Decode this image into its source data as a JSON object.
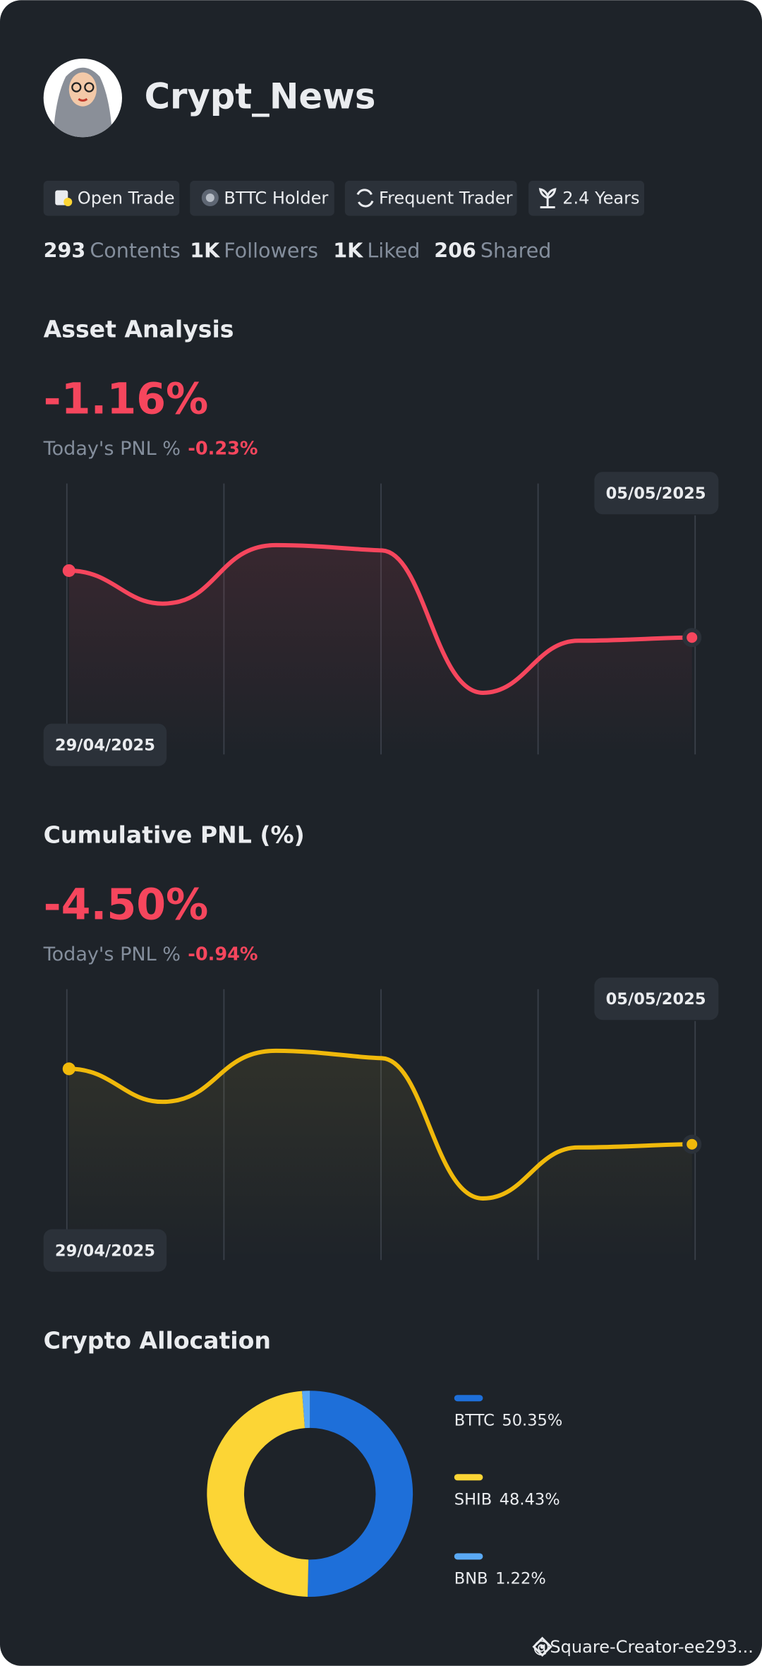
{
  "profile": {
    "name": "Crypt_News",
    "badges": [
      "Open Trade",
      "BTTC Holder",
      "Frequent Trader",
      "2.4 Years"
    ],
    "stats": [
      {
        "value": "293",
        "label": "Contents"
      },
      {
        "value": "1K",
        "label": "Followers"
      },
      {
        "value": "1K",
        "label": "Liked"
      },
      {
        "value": "206",
        "label": "Shared"
      }
    ]
  },
  "asset_analysis": {
    "title": "Asset Analysis",
    "value": "-1.16%",
    "today_label": "Today's PNL %",
    "today_value": "-0.23%",
    "start_date": "29/04/2025",
    "end_date": "05/05/2025"
  },
  "cumulative_pnl": {
    "title": "Cumulative PNL (%)",
    "value": "-4.50%",
    "today_label": "Today's PNL %",
    "today_value": "-0.94%",
    "start_date": "29/04/2025",
    "end_date": "05/05/2025"
  },
  "chart_data": {
    "type": "donut",
    "title": "Crypto Allocation",
    "categories": [
      "BTTC",
      "SHIB",
      "BNB"
    ],
    "values": [
      50.35,
      48.43,
      1.22
    ],
    "value_labels": [
      "50.35%",
      "48.43%",
      "1.22%"
    ],
    "colors": [
      "#1e6fd9",
      "#fcd535",
      "#5aa9f5"
    ]
  },
  "footer": "@Square-Creator-ee293..."
}
